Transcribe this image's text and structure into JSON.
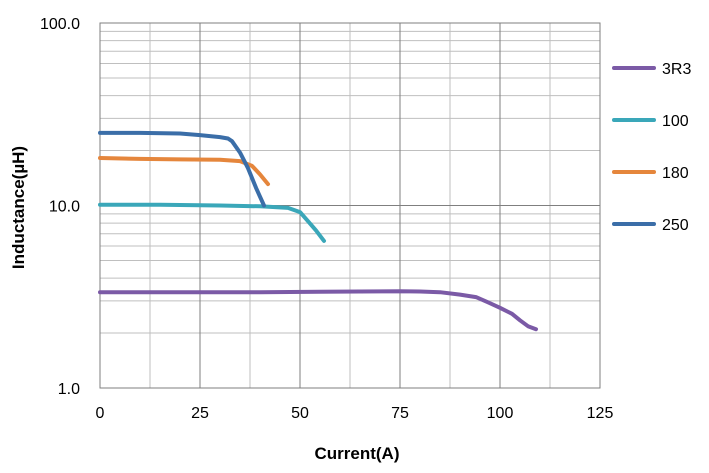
{
  "chart_data": {
    "type": "line",
    "title": "",
    "xlabel": "Current(A)",
    "ylabel": "Inductance(µH)",
    "xlim": [
      0,
      125
    ],
    "ylim": [
      1.0,
      100.0
    ],
    "y_scale": "log",
    "x_ticks": [
      0,
      25,
      50,
      75,
      100,
      125
    ],
    "x_tick_labels": [
      "0",
      "25",
      "50",
      "75",
      "100",
      "125"
    ],
    "y_ticks": [
      1.0,
      10.0,
      100.0
    ],
    "y_tick_labels": [
      "1.0",
      "10.0",
      "100.0"
    ],
    "grid": true,
    "x_minor_grid_step": 12.5,
    "y_minor_grid": true,
    "legend_position": "right",
    "series": [
      {
        "name": "3R3",
        "color": "#7b5aa6",
        "x": [
          0,
          20,
          40,
          55,
          65,
          75,
          80,
          85,
          90,
          94,
          97,
          100,
          103,
          105,
          107,
          109
        ],
        "y": [
          3.35,
          3.35,
          3.35,
          3.37,
          3.38,
          3.39,
          3.38,
          3.35,
          3.25,
          3.15,
          2.95,
          2.75,
          2.55,
          2.35,
          2.18,
          2.1
        ]
      },
      {
        "name": "100",
        "color": "#3aa7b9",
        "x": [
          0,
          15,
          30,
          40,
          47,
          50,
          52,
          54,
          56
        ],
        "y": [
          10.1,
          10.1,
          10.0,
          9.9,
          9.7,
          9.2,
          8.2,
          7.3,
          6.4
        ]
      },
      {
        "name": "180",
        "color": "#e5863c",
        "x": [
          0,
          10,
          20,
          30,
          35,
          38,
          40,
          42
        ],
        "y": [
          18.2,
          18.0,
          17.9,
          17.8,
          17.5,
          16.5,
          14.8,
          13.1
        ]
      },
      {
        "name": "250",
        "color": "#3b6ea8",
        "x": [
          0,
          10,
          20,
          25,
          30,
          32,
          33,
          35,
          37,
          39,
          41
        ],
        "y": [
          25.0,
          25.0,
          24.8,
          24.3,
          23.7,
          23.3,
          22.5,
          19.5,
          16.0,
          12.5,
          10.0
        ]
      }
    ]
  }
}
